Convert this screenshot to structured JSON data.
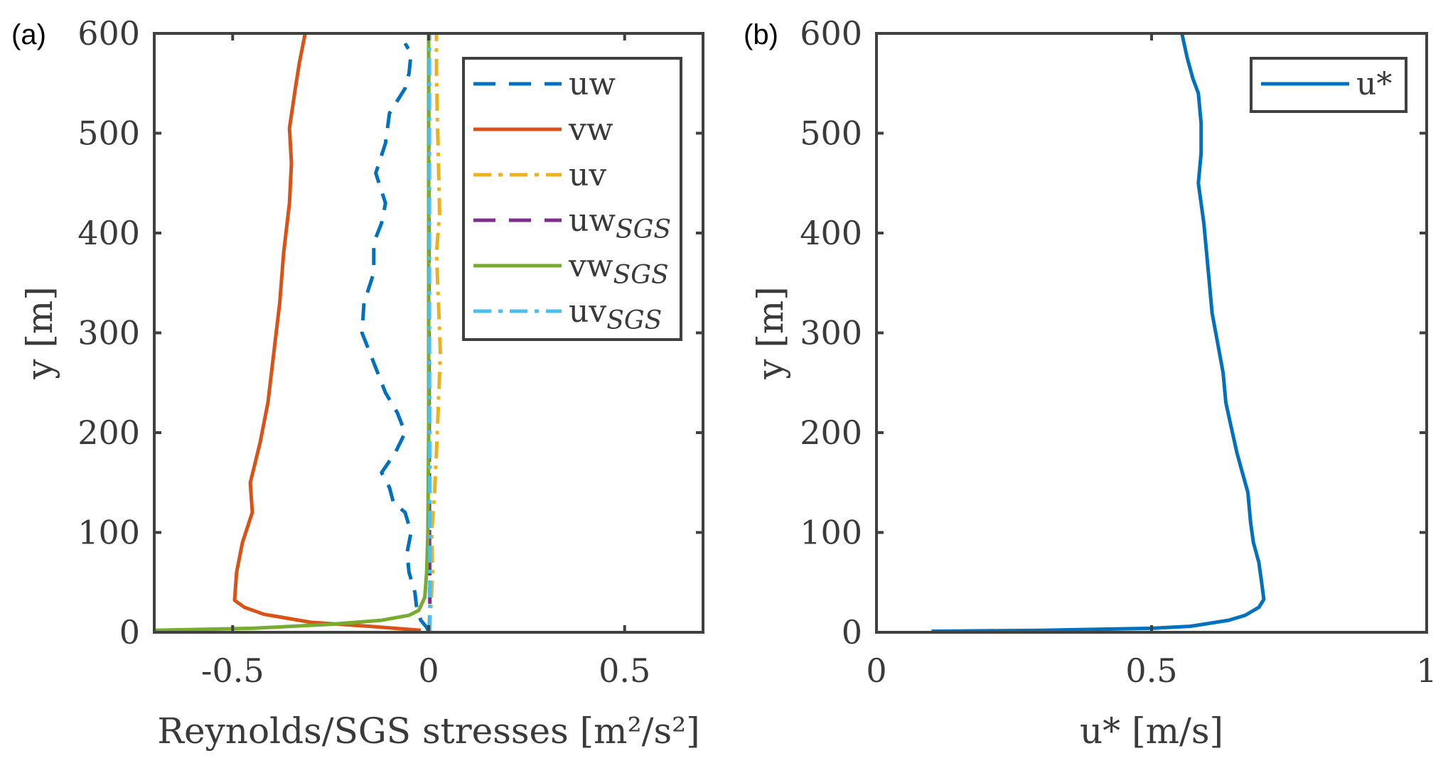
{
  "chart_data": [
    {
      "type": "line",
      "panel_label": "(a)",
      "xlabel": "Reynolds/SGS stresses [m²/s²]",
      "ylabel": "y [m]",
      "xlim": [
        -0.7,
        0.7
      ],
      "ylim": [
        0,
        600
      ],
      "xticks": [
        -0.5,
        0,
        0.5
      ],
      "xtick_labels": [
        "-0.5",
        "0",
        "0.5"
      ],
      "yticks": [
        0,
        100,
        200,
        300,
        400,
        500,
        600
      ],
      "ytick_labels": [
        "0",
        "100",
        "200",
        "300",
        "400",
        "500",
        "600"
      ],
      "grid": false,
      "legend_position": "top-right",
      "series": [
        {
          "name": "uw",
          "name_sub": "",
          "color": "#0072BD",
          "style": "dashed",
          "points": [
            [
              0.0,
              0
            ],
            [
              -0.005,
              5
            ],
            [
              -0.02,
              12
            ],
            [
              -0.03,
              22
            ],
            [
              -0.035,
              40
            ],
            [
              -0.05,
              60
            ],
            [
              -0.055,
              80
            ],
            [
              -0.045,
              100
            ],
            [
              -0.06,
              120
            ],
            [
              -0.09,
              130
            ],
            [
              -0.1,
              145
            ],
            [
              -0.12,
              160
            ],
            [
              -0.085,
              180
            ],
            [
              -0.06,
              200
            ],
            [
              -0.08,
              220
            ],
            [
              -0.11,
              240
            ],
            [
              -0.14,
              270
            ],
            [
              -0.17,
              300
            ],
            [
              -0.165,
              330
            ],
            [
              -0.14,
              360
            ],
            [
              -0.14,
              390
            ],
            [
              -0.12,
              410
            ],
            [
              -0.11,
              430
            ],
            [
              -0.135,
              460
            ],
            [
              -0.11,
              490
            ],
            [
              -0.1,
              520
            ],
            [
              -0.06,
              545
            ],
            [
              -0.05,
              560
            ],
            [
              -0.045,
              580
            ],
            [
              -0.06,
              590
            ]
          ]
        },
        {
          "name": "vw",
          "name_sub": "",
          "color": "#D95319",
          "style": "solid",
          "points": [
            [
              -0.02,
              2
            ],
            [
              -0.15,
              6
            ],
            [
              -0.3,
              10
            ],
            [
              -0.42,
              18
            ],
            [
              -0.47,
              25
            ],
            [
              -0.495,
              32
            ],
            [
              -0.49,
              60
            ],
            [
              -0.475,
              90
            ],
            [
              -0.45,
              120
            ],
            [
              -0.455,
              150
            ],
            [
              -0.43,
              190
            ],
            [
              -0.41,
              230
            ],
            [
              -0.395,
              280
            ],
            [
              -0.38,
              330
            ],
            [
              -0.37,
              380
            ],
            [
              -0.355,
              430
            ],
            [
              -0.35,
              470
            ],
            [
              -0.355,
              505
            ],
            [
              -0.34,
              545
            ],
            [
              -0.33,
              570
            ],
            [
              -0.315,
              600
            ]
          ]
        },
        {
          "name": "uv",
          "name_sub": "",
          "color": "#EDB120",
          "style": "dashdot",
          "points": [
            [
              0.0,
              0
            ],
            [
              0.005,
              20
            ],
            [
              0.01,
              60
            ],
            [
              0.008,
              100
            ],
            [
              0.015,
              140
            ],
            [
              0.02,
              180
            ],
            [
              0.025,
              230
            ],
            [
              0.03,
              280
            ],
            [
              0.025,
              330
            ],
            [
              0.02,
              380
            ],
            [
              0.028,
              420
            ],
            [
              0.025,
              470
            ],
            [
              0.022,
              520
            ],
            [
              0.02,
              560
            ],
            [
              0.02,
              600
            ]
          ]
        },
        {
          "name": "uw",
          "name_sub": "SGS",
          "color": "#7E2F8E",
          "style": "dashed",
          "points": [
            [
              0.002,
              0
            ],
            [
              0.003,
              30
            ],
            [
              0.002,
              100
            ],
            [
              0.001,
              300
            ],
            [
              0.0,
              600
            ]
          ]
        },
        {
          "name": "vw",
          "name_sub": "SGS",
          "color": "#77AC30",
          "style": "solid",
          "points": [
            [
              -0.7,
              2
            ],
            [
              -0.45,
              4
            ],
            [
              -0.25,
              8
            ],
            [
              -0.12,
              12
            ],
            [
              -0.05,
              17
            ],
            [
              -0.025,
              22
            ],
            [
              -0.01,
              35
            ],
            [
              -0.005,
              60
            ],
            [
              -0.002,
              100
            ],
            [
              0.0,
              200
            ],
            [
              0.0,
              600
            ]
          ]
        },
        {
          "name": "uv",
          "name_sub": "SGS",
          "color": "#4DBEEE",
          "style": "dashdot",
          "points": [
            [
              0.003,
              0
            ],
            [
              0.003,
              100
            ],
            [
              0.002,
              300
            ],
            [
              0.002,
              600
            ]
          ]
        }
      ]
    },
    {
      "type": "line",
      "panel_label": "(b)",
      "xlabel": "u* [m/s]",
      "ylabel": "y [m]",
      "xlim": [
        0,
        1
      ],
      "ylim": [
        0,
        600
      ],
      "xticks": [
        0,
        0.5,
        1
      ],
      "xtick_labels": [
        "0",
        "0.5",
        "1"
      ],
      "yticks": [
        0,
        100,
        200,
        300,
        400,
        500,
        600
      ],
      "ytick_labels": [
        "0",
        "100",
        "200",
        "300",
        "400",
        "500",
        "600"
      ],
      "grid": false,
      "legend_position": "top-right",
      "series": [
        {
          "name": "u*",
          "name_sub": "",
          "color": "#0072BD",
          "style": "solid",
          "points": [
            [
              0.1,
              1
            ],
            [
              0.3,
              2
            ],
            [
              0.5,
              4
            ],
            [
              0.57,
              6
            ],
            [
              0.64,
              12
            ],
            [
              0.67,
              17
            ],
            [
              0.695,
              25
            ],
            [
              0.704,
              33
            ],
            [
              0.7,
              50
            ],
            [
              0.695,
              70
            ],
            [
              0.685,
              90
            ],
            [
              0.68,
              110
            ],
            [
              0.675,
              140
            ],
            [
              0.665,
              160
            ],
            [
              0.655,
              180
            ],
            [
              0.645,
              205
            ],
            [
              0.635,
              230
            ],
            [
              0.63,
              260
            ],
            [
              0.62,
              290
            ],
            [
              0.61,
              320
            ],
            [
              0.605,
              350
            ],
            [
              0.6,
              380
            ],
            [
              0.595,
              410
            ],
            [
              0.585,
              450
            ],
            [
              0.59,
              480
            ],
            [
              0.59,
              510
            ],
            [
              0.585,
              540
            ],
            [
              0.575,
              555
            ],
            [
              0.565,
              575
            ],
            [
              0.555,
              600
            ]
          ]
        }
      ]
    }
  ]
}
